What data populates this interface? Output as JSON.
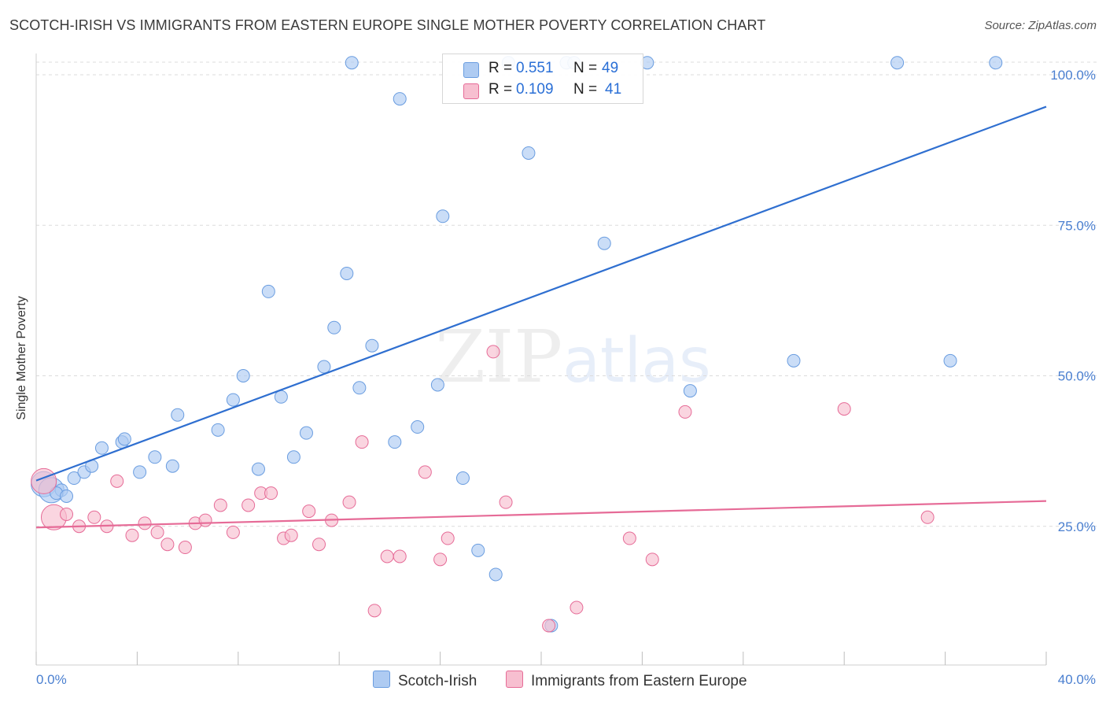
{
  "title": "SCOTCH-IRISH VS IMMIGRANTS FROM EASTERN EUROPE SINGLE MOTHER POVERTY CORRELATION CHART",
  "source": "Source: ZipAtlas.com",
  "watermark": {
    "zip": "ZIP",
    "atlas": "atlas"
  },
  "legend": {
    "rows": [
      {
        "r_label": "R = ",
        "r_value": "0.551",
        "n_label": "N = ",
        "n_value": "49",
        "color": "#aecbf2"
      },
      {
        "r_label": "R = ",
        "r_value": "0.109",
        "n_label": "N = ",
        "n_value": "41",
        "color": "#f7bfd0"
      }
    ]
  },
  "bottom_legend": [
    {
      "label": "Scotch-Irish",
      "color": "#aecbf2"
    },
    {
      "label": "Immigrants from Eastern Europe",
      "color": "#f7bfd0"
    }
  ],
  "chart_data": {
    "type": "scatter",
    "title": "SCOTCH-IRISH VS IMMIGRANTS FROM EASTERN EUROPE SINGLE MOTHER POVERTY CORRELATION CHART",
    "xlabel": "",
    "ylabel": "Single Mother Poverty",
    "xlim": [
      0,
      40
    ],
    "ylim": [
      0,
      100
    ],
    "x_tick_labels": [
      "0.0%",
      "40.0%"
    ],
    "y_tick_labels": [
      "25.0%",
      "50.0%",
      "75.0%",
      "100.0%"
    ],
    "y_ticks": [
      25,
      50,
      75,
      100
    ],
    "grid": "horizontal dashed",
    "series": [
      {
        "name": "Scotch-Irish",
        "color": "#6a9de0",
        "fill": "#aecbf2",
        "trend": {
          "x": [
            0,
            40
          ],
          "y": [
            32.6,
            94.7
          ]
        },
        "points": [
          [
            0.3,
            32
          ],
          [
            0.6,
            31
          ],
          [
            1.0,
            31
          ],
          [
            1.5,
            33
          ],
          [
            1.9,
            34
          ],
          [
            2.2,
            35
          ],
          [
            2.6,
            38
          ],
          [
            3.4,
            39
          ],
          [
            3.5,
            39.5
          ],
          [
            4.1,
            34
          ],
          [
            4.7,
            36.5
          ],
          [
            5.4,
            35
          ],
          [
            5.6,
            43.5
          ],
          [
            7.2,
            41
          ],
          [
            7.8,
            46
          ],
          [
            8.2,
            50
          ],
          [
            8.8,
            34.5
          ],
          [
            9.2,
            64
          ],
          [
            9.7,
            46.5
          ],
          [
            10.2,
            36.5
          ],
          [
            10.7,
            40.5
          ],
          [
            11.4,
            51.5
          ],
          [
            11.8,
            58
          ],
          [
            12.3,
            67
          ],
          [
            12.5,
            102
          ],
          [
            12.8,
            48
          ],
          [
            13.3,
            55
          ],
          [
            14.2,
            39
          ],
          [
            14.4,
            96
          ],
          [
            15.1,
            41.5
          ],
          [
            15.9,
            48.5
          ],
          [
            16.1,
            76.5
          ],
          [
            16.9,
            33
          ],
          [
            17.5,
            21
          ],
          [
            18.2,
            17
          ],
          [
            18.7,
            102
          ],
          [
            19.5,
            87
          ],
          [
            20.4,
            8.5
          ],
          [
            21.0,
            102
          ],
          [
            21.3,
            102
          ],
          [
            22.5,
            72
          ],
          [
            24.2,
            102
          ],
          [
            25.9,
            47.5
          ],
          [
            30.0,
            52.5
          ],
          [
            34.1,
            102
          ],
          [
            36.2,
            52.5
          ],
          [
            38.0,
            102
          ],
          [
            0.8,
            30.5
          ],
          [
            1.2,
            30
          ]
        ]
      },
      {
        "name": "Immigrants from Eastern Europe",
        "color": "#e66b97",
        "fill": "#f7bfd0",
        "trend": {
          "x": [
            0,
            40
          ],
          "y": [
            24.8,
            29.2
          ]
        },
        "points": [
          [
            0.3,
            32.5
          ],
          [
            0.7,
            26.5
          ],
          [
            1.2,
            27
          ],
          [
            1.7,
            25
          ],
          [
            2.3,
            26.5
          ],
          [
            2.8,
            25
          ],
          [
            3.2,
            32.5
          ],
          [
            3.8,
            23.5
          ],
          [
            4.3,
            25.5
          ],
          [
            4.8,
            24
          ],
          [
            5.2,
            22
          ],
          [
            5.9,
            21.5
          ],
          [
            6.3,
            25.5
          ],
          [
            6.7,
            26
          ],
          [
            7.3,
            28.5
          ],
          [
            7.8,
            24
          ],
          [
            8.4,
            28.5
          ],
          [
            8.9,
            30.5
          ],
          [
            9.3,
            30.5
          ],
          [
            9.8,
            23
          ],
          [
            10.1,
            23.5
          ],
          [
            10.8,
            27.5
          ],
          [
            11.2,
            22
          ],
          [
            11.7,
            26
          ],
          [
            12.4,
            29
          ],
          [
            12.9,
            39
          ],
          [
            13.4,
            11
          ],
          [
            13.9,
            20
          ],
          [
            14.4,
            20
          ],
          [
            15.4,
            34
          ],
          [
            16.0,
            19.5
          ],
          [
            16.3,
            23
          ],
          [
            18.1,
            54
          ],
          [
            18.6,
            29
          ],
          [
            20.3,
            8.5
          ],
          [
            21.4,
            11.5
          ],
          [
            23.5,
            23
          ],
          [
            24.4,
            19.5
          ],
          [
            25.7,
            44
          ],
          [
            32.0,
            44.5
          ],
          [
            35.3,
            26.5
          ]
        ]
      }
    ]
  }
}
